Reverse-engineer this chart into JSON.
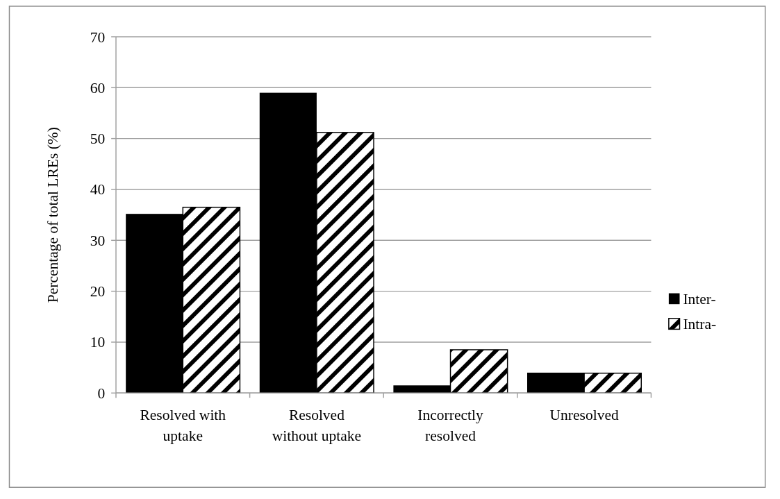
{
  "chart_data": {
    "type": "bar",
    "ylabel": "Percentage of total LREs (%)",
    "categories": [
      "Resolved with uptake",
      "Resolved without uptake",
      "Incorrectly resolved",
      "Unresolved"
    ],
    "series": [
      {
        "name": "Inter-",
        "color": "#000000",
        "values": [
          35.2,
          59.0,
          1.5,
          4.0
        ]
      },
      {
        "name": "Intra-",
        "color": "#000000",
        "values": [
          36.5,
          51.2,
          8.5,
          3.9
        ]
      }
    ],
    "ylim": [
      0,
      70
    ],
    "yticks": [
      0,
      10,
      20,
      30,
      40,
      50,
      60,
      70
    ],
    "grid": "y",
    "legend": "right"
  }
}
